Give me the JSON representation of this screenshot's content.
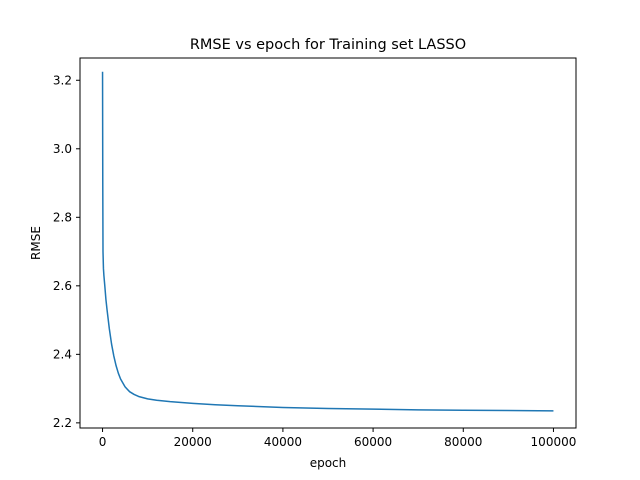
{
  "chart_data": {
    "type": "line",
    "title": "RMSE vs epoch for Training set LASSO",
    "xlabel": "epoch",
    "ylabel": "RMSE",
    "xlim": [
      -5000,
      105000
    ],
    "ylim": [
      2.185,
      3.265
    ],
    "xticks": [
      0,
      20000,
      40000,
      60000,
      80000,
      100000
    ],
    "xtick_labels": [
      "0",
      "20000",
      "40000",
      "60000",
      "80000",
      "100000"
    ],
    "yticks": [
      2.2,
      2.4,
      2.6,
      2.8,
      3.0,
      3.2
    ],
    "ytick_labels": [
      "2.2",
      "2.4",
      "2.6",
      "2.8",
      "3.0",
      "3.2"
    ],
    "grid": false,
    "line_color": "#1f77b4",
    "series": [
      {
        "name": "RMSE",
        "x": [
          0,
          50,
          100,
          200,
          300,
          500,
          750,
          1000,
          1500,
          2000,
          2500,
          3000,
          3500,
          4000,
          5000,
          6000,
          7000,
          8000,
          10000,
          12000,
          15000,
          20000,
          25000,
          30000,
          40000,
          50000,
          60000,
          70000,
          80000,
          90000,
          100000
        ],
        "values": [
          3.225,
          2.9,
          2.7,
          2.65,
          2.63,
          2.6,
          2.56,
          2.53,
          2.475,
          2.43,
          2.395,
          2.367,
          2.345,
          2.328,
          2.305,
          2.291,
          2.283,
          2.277,
          2.27,
          2.266,
          2.262,
          2.257,
          2.253,
          2.25,
          2.245,
          2.242,
          2.24,
          2.238,
          2.237,
          2.236,
          2.235
        ]
      }
    ]
  }
}
